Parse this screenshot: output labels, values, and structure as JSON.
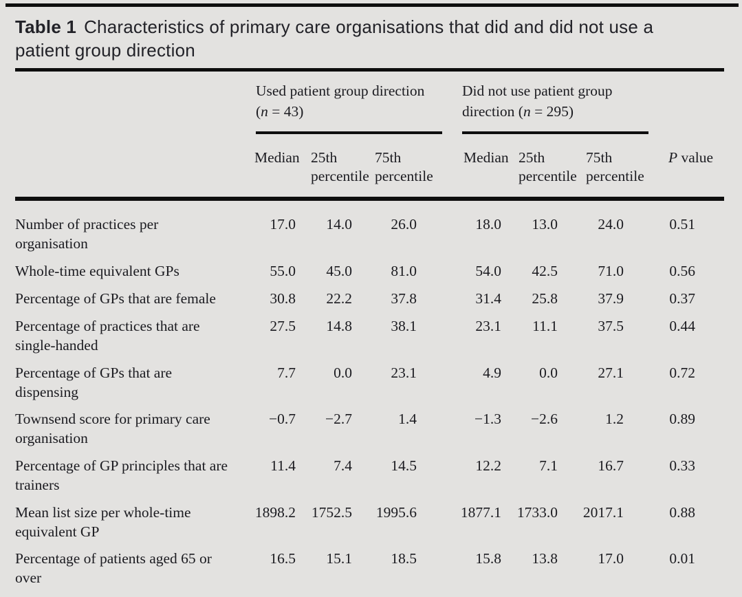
{
  "title": {
    "label": "Table 1",
    "text": "Characteristics of primary care organisations that did and did not use a patient group direction"
  },
  "header": {
    "groups": [
      {
        "name": "Used patient group direction\n",
        "n_open": "(",
        "n": "n",
        "n_rest": " = 43)"
      },
      {
        "name": "Did not use patient group\ndirection ",
        "n_open": "(",
        "n": "n",
        "n_rest": " = 295)"
      }
    ],
    "columns": {
      "median1": "Median",
      "p25_1": "25th\npercentile",
      "p75_1": "75th\npercentile",
      "median2": "Median",
      "p25_2": "25th\npercentile",
      "p75_2": "75th\npercentile",
      "p_italic": "P",
      "p_rest": " value"
    }
  },
  "rows": [
    {
      "label": "Number of practices per\norganisation",
      "values": [
        "17.0",
        "14.0",
        "26.0",
        "18.0",
        "13.0",
        "24.0",
        "0.51"
      ]
    },
    {
      "label": "Whole-time equivalent GPs",
      "values": [
        "55.0",
        "45.0",
        "81.0",
        "54.0",
        "42.5",
        "71.0",
        "0.56"
      ]
    },
    {
      "label": "Percentage of GPs that are female",
      "values": [
        "30.8",
        "22.2",
        "37.8",
        "31.4",
        "25.8",
        "37.9",
        "0.37"
      ]
    },
    {
      "label": "Percentage of practices that are\nsingle-handed",
      "values": [
        "27.5",
        "14.8",
        "38.1",
        "23.1",
        "11.1",
        "37.5",
        "0.44"
      ]
    },
    {
      "label": "Percentage of GPs that are\ndispensing",
      "values": [
        "7.7",
        "0.0",
        "23.1",
        "4.9",
        "0.0",
        "27.1",
        "0.72"
      ]
    },
    {
      "label": "Townsend score for primary care\norganisation",
      "values": [
        "−0.7",
        "−2.7",
        "1.4",
        "−1.3",
        "−2.6",
        "1.2",
        "0.89"
      ]
    },
    {
      "label": "Percentage of GP principles that are\ntrainers",
      "values": [
        "11.4",
        "7.4",
        "14.5",
        "12.2",
        "7.1",
        "16.7",
        "0.33"
      ]
    },
    {
      "label": "Mean list size per whole-time\nequivalent GP",
      "values": [
        "1898.2",
        "1752.5",
        "1995.6",
        "1877.1",
        "1733.0",
        "2017.1",
        "0.88"
      ]
    },
    {
      "label": "Percentage of patients aged 65 or\nover",
      "values": [
        "16.5",
        "15.1",
        "18.5",
        "15.8",
        "13.8",
        "17.0",
        "0.01"
      ]
    }
  ],
  "colors": {
    "background": "#e3e2e0",
    "text": "#1b1b20",
    "rule": "#0e0e0e"
  }
}
